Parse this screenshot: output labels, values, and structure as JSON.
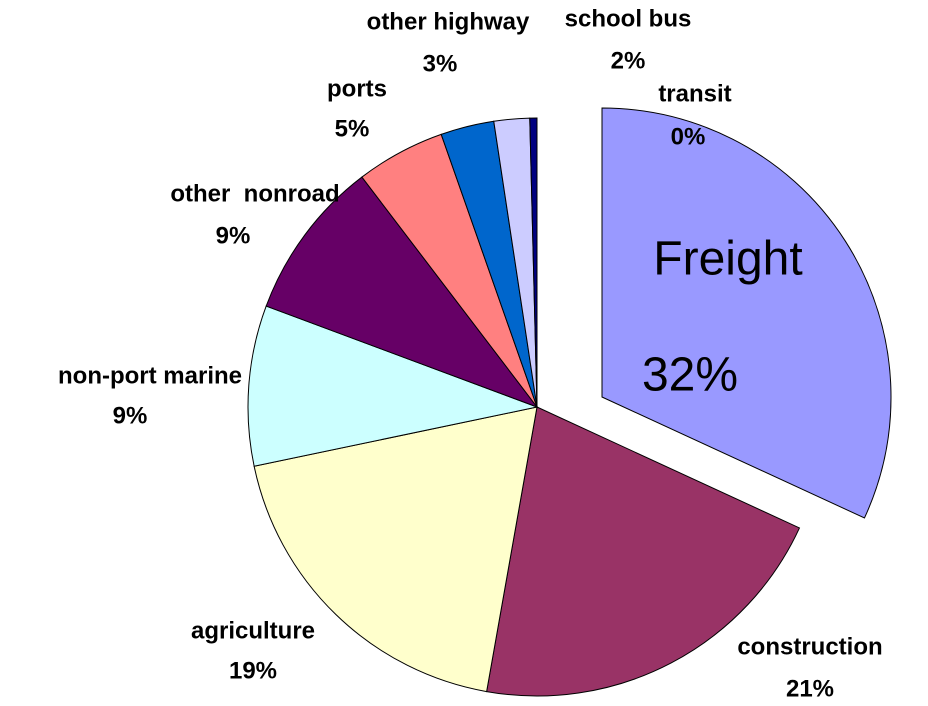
{
  "chart_data": {
    "type": "pie",
    "categories": [
      "Freight",
      "construction",
      "agriculture",
      "non-port marine",
      "other  nonroad",
      "ports",
      "other highway",
      "school bus",
      "transit"
    ],
    "values": [
      32,
      21,
      19,
      9,
      9,
      5,
      3,
      2,
      0.4
    ],
    "value_labels": [
      "32%",
      "21%",
      "19%",
      "9%",
      "9%",
      "5%",
      "3%",
      "2%",
      "0%"
    ],
    "colors": [
      "#9999ff",
      "#993366",
      "#ffffcc",
      "#ccffff",
      "#660066",
      "#ff8080",
      "#0066cc",
      "#ccccff",
      "#000080"
    ]
  }
}
